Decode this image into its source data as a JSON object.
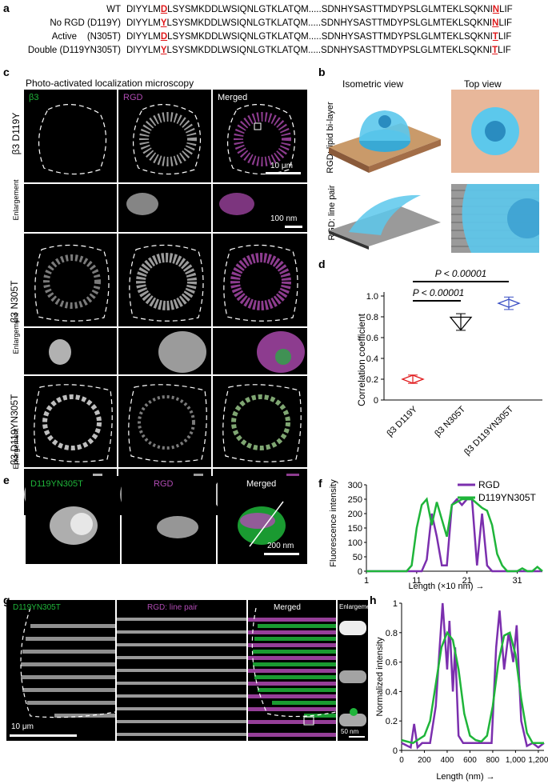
{
  "panel_labels": {
    "a": "a",
    "b": "b",
    "c": "c",
    "d": "d",
    "e": "e",
    "f": "f",
    "g": "g",
    "h": "h"
  },
  "panel_a": {
    "rows": [
      {
        "label": "WT",
        "pre1": "DIYYLM",
        "mut1": "D",
        "mid": "LSYSMKDDLWSIQNLGTKLATQM.....SDNHYSASTTMDYPSLGLMTEKLSQKNI",
        "mut2": "N",
        "post": "LIF"
      },
      {
        "label": "No RGD (D119Y)",
        "pre1": "DIYYLM",
        "mut1": "Y",
        "mid": "LSYSMKDDLWSIQNLGTKLATQM.....SDNHYSASTTMDYPSLGLMTEKLSQKNI",
        "mut2": "N",
        "post": "LIF"
      },
      {
        "label": "Active    (N305T)",
        "pre1": "DIYYLM",
        "mut1": "D",
        "mid": "LSYSMKDDLWSIQNLGTKLATQM.....SDNHYSASTTMDYPSLGLMTEKLSQKNI",
        "mut2": "T",
        "post": "LIF"
      },
      {
        "label": "Double (D119YN305T)",
        "pre1": "DIYYLM",
        "mut1": "Y",
        "mid": "LSYSMKDDLWSIQNLGTKLATQM.....SDNHYSASTTMDYPSLGLMTEKLSQKNI",
        "mut2": "T",
        "post": "LIF"
      }
    ]
  },
  "panel_c": {
    "title": "Photo-activated localization microscopy",
    "col_labels": [
      "β3",
      "RGD",
      "Merged"
    ],
    "rows": [
      "β3 D119Y",
      "β3 N305T",
      "β3 D119YN305T"
    ],
    "enlargement": "Enlargement",
    "scale_10um": "10 μm",
    "scale_100nm": "100 nm"
  },
  "panel_b": {
    "col_labels": [
      "Isometric view",
      "Top view"
    ],
    "row_labels": [
      "RGD: lipid bi-layer",
      "RGD: line pair"
    ]
  },
  "panel_d": {
    "chart_data": {
      "type": "scatter",
      "categories": [
        "β3 D119Y",
        "β3 N305T",
        "β3 D119YN305T"
      ],
      "values": [
        0.2,
        0.75,
        0.93
      ],
      "ylabel": "Correlation coefficient",
      "ylim": [
        0,
        1.0
      ],
      "yticks": [
        "0",
        "0.2",
        "0.4",
        "0.6",
        "0.8",
        "1.0"
      ],
      "annotations": [
        "P < 0.00001",
        "P < 0.00001"
      ],
      "colors": [
        "#e0191b",
        "#000000",
        "#3a4fc4"
      ]
    }
  },
  "panel_e": {
    "labels": [
      "D119YN305T",
      "RGD",
      "Merged"
    ],
    "scale": "200 nm"
  },
  "panel_f": {
    "chart_data": {
      "type": "line",
      "xlabel": "Length (×10 nm) →",
      "ylabel": "Fluorescence intensity",
      "xticks": [
        "1",
        "11",
        "21",
        "31"
      ],
      "yticks": [
        "0",
        "50",
        "100",
        "150",
        "200",
        "250",
        "300"
      ],
      "xlim": [
        1,
        36
      ],
      "ylim": [
        0,
        300
      ],
      "series": [
        {
          "name": "RGD",
          "color": "#7b2fae",
          "x": [
            1,
            12,
            13,
            14,
            15,
            16,
            17,
            18,
            19,
            20,
            21,
            22,
            23,
            24,
            25,
            26,
            27,
            28,
            36
          ],
          "y": [
            0,
            0,
            40,
            200,
            120,
            20,
            20,
            230,
            250,
            230,
            250,
            250,
            20,
            200,
            20,
            0,
            0,
            0,
            0
          ]
        },
        {
          "name": "D119YN305T",
          "color": "#1fb53a",
          "x": [
            1,
            9,
            10,
            11,
            12,
            13,
            14,
            15,
            16,
            17,
            18,
            19,
            20,
            22,
            24,
            25,
            26,
            27,
            28,
            29,
            30,
            31,
            32,
            33,
            34,
            35,
            36
          ],
          "y": [
            0,
            0,
            20,
            150,
            230,
            250,
            160,
            240,
            180,
            120,
            230,
            240,
            250,
            250,
            220,
            210,
            160,
            60,
            20,
            0,
            0,
            0,
            10,
            0,
            0,
            15,
            0
          ]
        }
      ]
    }
  },
  "panel_g": {
    "labels": [
      "D119YN305T",
      "RGD: line pair",
      "Merged",
      "Enlargement"
    ],
    "scale_10um": "10 μm",
    "scale_50nm": "50 nm"
  },
  "panel_h": {
    "chart_data": {
      "type": "line",
      "xlabel": "Length (nm) →",
      "ylabel": "Normalized intensity",
      "xticks": [
        "0",
        "200",
        "400",
        "600",
        "800",
        "1,000",
        "1,200"
      ],
      "yticks": [
        "0",
        "0.2",
        "0.4",
        "0.6",
        "0.8",
        "1"
      ],
      "xlim": [
        0,
        1250
      ],
      "ylim": [
        0,
        1
      ],
      "series": [
        {
          "name": "RGD",
          "color": "#7b2fae",
          "x": [
            0,
            80,
            110,
            140,
            180,
            250,
            300,
            330,
            360,
            400,
            420,
            450,
            470,
            500,
            540,
            600,
            700,
            790,
            830,
            860,
            900,
            940,
            980,
            1010,
            1050,
            1100,
            1150,
            1200,
            1250
          ],
          "y": [
            0.05,
            0.02,
            0.18,
            0.02,
            0.05,
            0.05,
            0.3,
            0.65,
            1.0,
            0.55,
            0.88,
            0.4,
            0.7,
            0.1,
            0.05,
            0.05,
            0.05,
            0.05,
            0.7,
            0.95,
            0.55,
            0.8,
            0.6,
            0.85,
            0.2,
            0.03,
            0.05,
            0.02,
            0.05
          ]
        },
        {
          "name": "D119YN305T",
          "color": "#1fb53a",
          "x": [
            0,
            100,
            200,
            250,
            300,
            350,
            400,
            450,
            500,
            550,
            600,
            650,
            700,
            750,
            800,
            850,
            900,
            950,
            1000,
            1050,
            1100,
            1150,
            1200,
            1250
          ],
          "y": [
            0.07,
            0.05,
            0.1,
            0.2,
            0.45,
            0.7,
            0.8,
            0.75,
            0.55,
            0.25,
            0.1,
            0.07,
            0.06,
            0.1,
            0.3,
            0.6,
            0.78,
            0.8,
            0.65,
            0.35,
            0.12,
            0.05,
            0.05,
            0.05
          ]
        }
      ]
    }
  },
  "colors": {
    "green": "#1fb53a",
    "magenta": "#b04bb3",
    "purple": "#7b2fae",
    "red": "#e0191b",
    "blue": "#3a4fc4"
  }
}
